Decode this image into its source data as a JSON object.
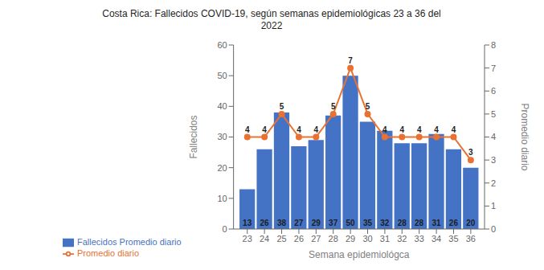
{
  "chart_data": {
    "type": "bar",
    "title": "Costa Rica: Fallecidos COVID-19, según semanas epidemiológicas 23 a 36 del\n2022",
    "x_label": "Semana epidemiológca",
    "y_label": "Fallecidos",
    "y2_label": "Promedio diario",
    "x": [
      23,
      24,
      25,
      26,
      27,
      28,
      29,
      30,
      31,
      32,
      33,
      34,
      35,
      36
    ],
    "xlim": [
      22.2,
      36.8
    ],
    "xticks": [
      23,
      24,
      25,
      26,
      27,
      28,
      29,
      30,
      31,
      32,
      33,
      34,
      35,
      36
    ],
    "ylim": [
      0,
      60
    ],
    "yticks": [
      0,
      10,
      20,
      30,
      40,
      50,
      60
    ],
    "y2lim": [
      0,
      8
    ],
    "y2ticks": [
      0,
      1,
      2,
      3,
      4,
      5,
      6,
      7,
      8
    ],
    "grid": false,
    "legend": "bottom",
    "data_labels": true,
    "series": [
      {
        "name": "Fallecidos  Promedio diario",
        "type": "bar",
        "color": "#4472C4",
        "values": [
          13,
          26,
          38,
          27,
          29,
          37,
          50,
          35,
          32,
          28,
          28,
          31,
          26,
          20
        ]
      },
      {
        "name": "Promedio diario",
        "type": "line",
        "axis": "y2",
        "color": "#E97132",
        "marker": "o",
        "values": [
          4,
          4,
          5,
          4,
          4,
          5,
          7,
          5,
          4,
          4,
          4,
          4,
          4,
          3
        ]
      }
    ]
  }
}
